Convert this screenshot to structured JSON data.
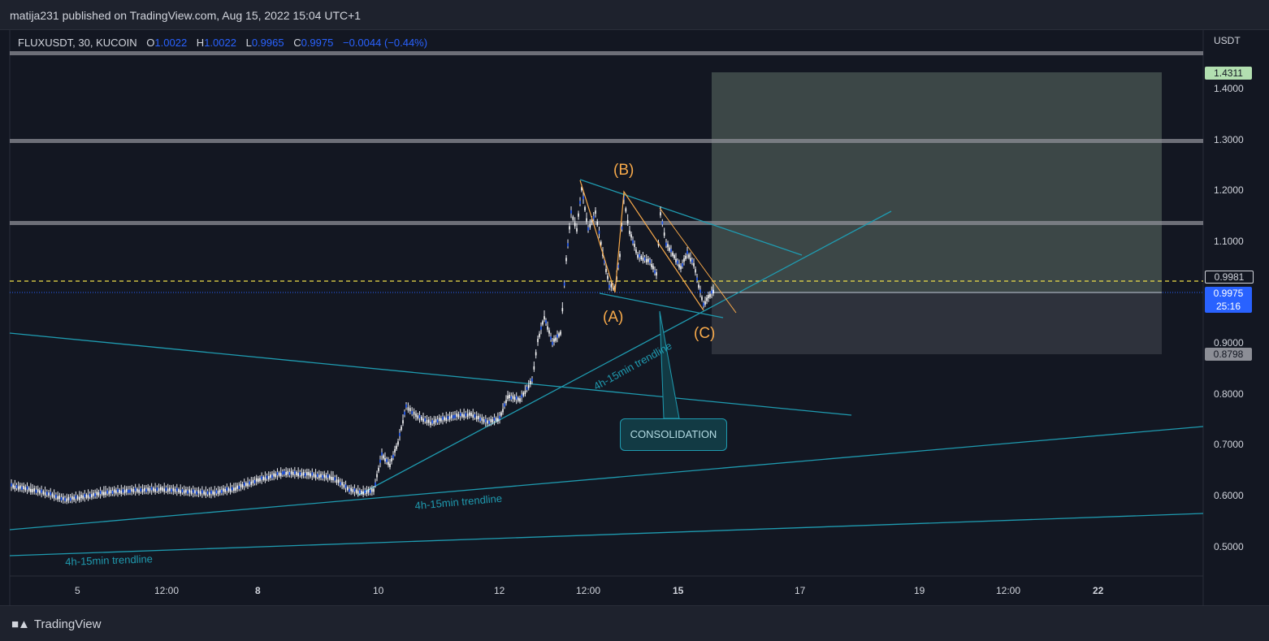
{
  "header": {
    "published": "matija231 published on TradingView.com, Aug 15, 2022 15:04 UTC+1"
  },
  "symbol": {
    "name": "FLUXUSDT, 30, KUCOIN",
    "o_label": "O",
    "o_value": "1.0022",
    "h_label": "H",
    "h_value": "1.0022",
    "l_label": "L",
    "l_value": "0.9965",
    "c_label": "C",
    "c_value": "0.9975",
    "change": "−0.0044 (−0.44%)"
  },
  "price_axis": {
    "currency": "USDT",
    "ticks": [
      "1.4000",
      "1.3000",
      "1.2000",
      "1.1000",
      "0.9000",
      "0.8000",
      "0.7000",
      "0.6000",
      "0.5000"
    ],
    "tags": {
      "target": "1.4311",
      "dotted": "0.9981",
      "current": "0.9975",
      "countdown": "25:16",
      "stop": "0.8798"
    }
  },
  "time_axis": {
    "ticks": [
      "5",
      "12:00",
      "8",
      "10",
      "12",
      "12:00",
      "15",
      "17",
      "19",
      "12:00",
      "22"
    ]
  },
  "annotations": {
    "wave_a": "(A)",
    "wave_b": "(B)",
    "wave_c": "(C)",
    "trendline_1": "4h-15min trendline",
    "trendline_2": "4h-15min trendline",
    "trendline_3": "4h-15min trendline",
    "callout": "CONSOLIDATION"
  },
  "footer": {
    "brand": "TradingView"
  },
  "colors": {
    "background": "#131722",
    "trendline": "#1f9bb0",
    "wave_label": "#f7a94a",
    "current_price": "#2962ff",
    "target_tag": "#b2dfb0"
  }
}
